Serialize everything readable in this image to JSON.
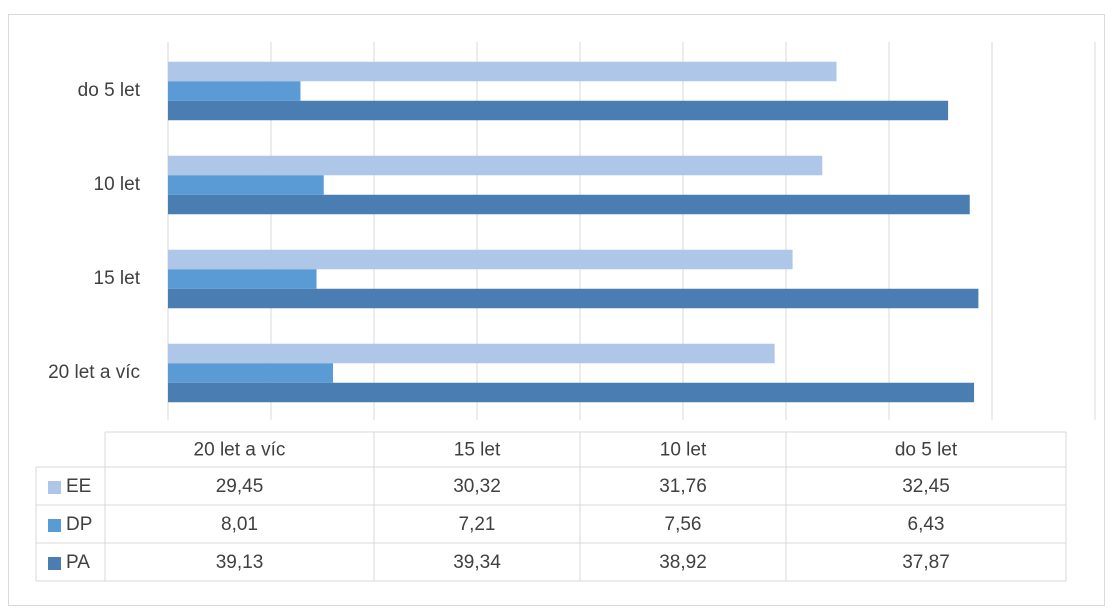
{
  "chart_data": {
    "type": "hbar",
    "categories": [
      "20 let a víc",
      "15 let",
      "10 let",
      "do 5 let"
    ],
    "series": [
      {
        "name": "EE",
        "color": "#aec6e8",
        "values": [
          29.45,
          30.32,
          31.76,
          32.45
        ],
        "value_labels": [
          "29,45",
          "30,32",
          "31,76",
          "32,45"
        ]
      },
      {
        "name": "DP",
        "color": "#5b9bd5",
        "values": [
          8.01,
          7.21,
          7.56,
          6.43
        ],
        "value_labels": [
          "8,01",
          "7,21",
          "7,56",
          "6,43"
        ]
      },
      {
        "name": "PA",
        "color": "#4a7eb2",
        "values": [
          39.13,
          39.34,
          38.92,
          37.87
        ],
        "value_labels": [
          "39,13",
          "39,34",
          "38,92",
          "37,87"
        ]
      }
    ],
    "xlim": [
      0,
      45
    ],
    "xticks": [
      0,
      5,
      10,
      15,
      20,
      25,
      30,
      35,
      40,
      45
    ],
    "grid": true
  }
}
